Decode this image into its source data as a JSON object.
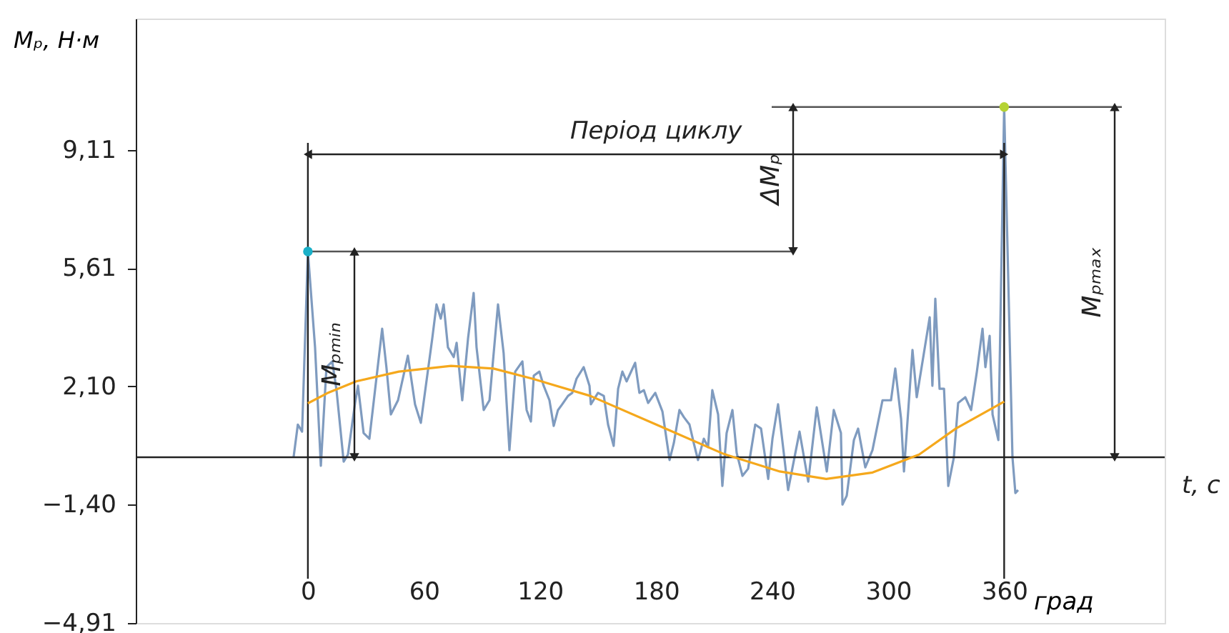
{
  "chart_data": {
    "type": "line",
    "ylabel": "Mₚ, Н·м",
    "xlabel": "град",
    "xlim": [
      -89,
      443
    ],
    "ylim": [
      -4.91,
      13
    ],
    "xticks": [
      0,
      60,
      120,
      180,
      240,
      300,
      360
    ],
    "yticks": [
      {
        "value": -4.91,
        "label": "−4,91"
      },
      {
        "value": -1.4,
        "label": "−1,40"
      },
      {
        "value": 2.1,
        "label": "2,10"
      },
      {
        "value": 5.61,
        "label": "5,61"
      },
      {
        "value": 9.11,
        "label": "9,11"
      }
    ],
    "grid": false,
    "series": [
      {
        "color": "#7f9bbf",
        "x": [
          -7.4,
          -5.2,
          -3.0,
          0,
          3.7,
          6.7,
          9.6,
          12.6,
          14.8,
          18.5,
          20.7,
          24.4,
          25.9,
          28.8,
          31.8,
          38.4,
          40.6,
          42.9,
          46.6,
          51.7,
          55.4,
          58.4,
          64.3,
          66.5,
          68.7,
          70.2,
          72.4,
          75.4,
          76.9,
          79.8,
          82.8,
          85.7,
          87.2,
          90.9,
          93.9,
          98.3,
          101.2,
          104.2,
          107.2,
          110.9,
          113.1,
          115.3,
          116.8,
          119.7,
          121.9,
          124.9,
          127.1,
          129.3,
          131.5,
          134.5,
          136.7,
          138.9,
          142.6,
          145.6,
          146.3,
          150.0,
          153.0,
          155.2,
          158.1,
          160.4,
          162.6,
          164.8,
          169.2,
          171.4,
          173.7,
          175.9,
          179.6,
          183.3,
          187.0,
          189.2,
          192.1,
          194.4,
          197.3,
          199.5,
          201.7,
          204.7,
          206.9,
          209.1,
          212.1,
          214.3,
          216.5,
          219.5,
          221.7,
          224.7,
          227.6,
          231.3,
          234.3,
          238.0,
          240.2,
          243.1,
          248.3,
          254.2,
          258.7,
          263.1,
          268.3,
          271.9,
          275.6,
          276.4,
          278.6,
          282.3,
          284.5,
          288.2,
          291.9,
          297.1,
          301.5,
          303.7,
          306.7,
          308.2,
          312.6,
          314.8,
          317.8,
          321.5,
          322.9,
          324.4,
          326.6,
          328.9,
          331.1,
          334.0,
          336.2,
          339.9,
          342.9,
          345.9,
          348.8,
          350.3,
          352.5,
          354.0,
          357.0,
          360,
          364.3,
          365.8,
          367.2
        ],
        "values": [
          0.0,
          0.97,
          0.76,
          6.1,
          3.26,
          -0.25,
          2.67,
          2.84,
          1.99,
          -0.13,
          0.08,
          1.61,
          2.12,
          0.72,
          0.55,
          3.81,
          2.67,
          1.27,
          1.69,
          3.01,
          1.57,
          1.02,
          3.52,
          4.53,
          4.11,
          4.53,
          3.26,
          2.97,
          3.39,
          1.69,
          3.52,
          4.87,
          3.26,
          1.4,
          1.69,
          4.53,
          3.09,
          0.21,
          2.54,
          2.84,
          1.4,
          1.06,
          2.42,
          2.54,
          2.12,
          1.69,
          0.93,
          1.4,
          1.57,
          1.82,
          1.91,
          2.33,
          2.67,
          2.12,
          1.57,
          1.91,
          1.82,
          0.97,
          0.34,
          2.03,
          2.54,
          2.25,
          2.8,
          1.91,
          1.99,
          1.61,
          1.91,
          1.36,
          -0.08,
          0.42,
          1.4,
          1.19,
          0.97,
          0.42,
          -0.08,
          0.55,
          0.3,
          1.99,
          1.27,
          -0.85,
          0.72,
          1.4,
          0.13,
          -0.55,
          -0.34,
          0.97,
          0.85,
          -0.64,
          0.55,
          1.57,
          -0.97,
          0.76,
          -0.72,
          1.48,
          -0.42,
          1.4,
          0.72,
          -1.4,
          -1.14,
          0.51,
          0.85,
          -0.3,
          0.21,
          1.69,
          1.69,
          2.63,
          1.14,
          -0.42,
          3.18,
          1.78,
          2.84,
          4.15,
          2.12,
          4.7,
          2.03,
          2.03,
          -0.85,
          0.0,
          1.61,
          1.78,
          1.4,
          2.54,
          3.81,
          2.67,
          3.6,
          1.27,
          0.51,
          10.38,
          0.0,
          -1.06,
          -0.97
        ]
      },
      {
        "color": "#f5a81c",
        "x": [
          0,
          10,
          25,
          47,
          74,
          96,
          116,
          146,
          185,
          215,
          244,
          268,
          292,
          316,
          335,
          360
        ],
        "values": [
          1.6,
          1.9,
          2.25,
          2.54,
          2.71,
          2.63,
          2.33,
          1.82,
          0.85,
          0.1,
          -0.42,
          -0.64,
          -0.45,
          0.08,
          0.85,
          1.65
        ]
      },
      {
        "type": "scatter",
        "x": [
          0,
          360
        ],
        "values": [
          6.1,
          10.38
        ],
        "colors": [
          "#1ab0c8",
          "#b5d334"
        ]
      }
    ],
    "ref_lines": [
      {
        "axis": "y",
        "value": 0,
        "label": "t, c",
        "color": "#222222"
      },
      {
        "axis": "y",
        "value": 6.1,
        "color": "#555555"
      },
      {
        "axis": "y",
        "value": 10.38,
        "color": "#555555"
      },
      {
        "axis": "x",
        "value": 0,
        "color": "#222222"
      },
      {
        "axis": "x",
        "value": 360,
        "color": "#222222"
      }
    ],
    "annotations": [
      "Період циклу",
      "ΔMₚ",
      "Mₚₘᵢₙ",
      "Mₚₘₐₓ"
    ]
  }
}
